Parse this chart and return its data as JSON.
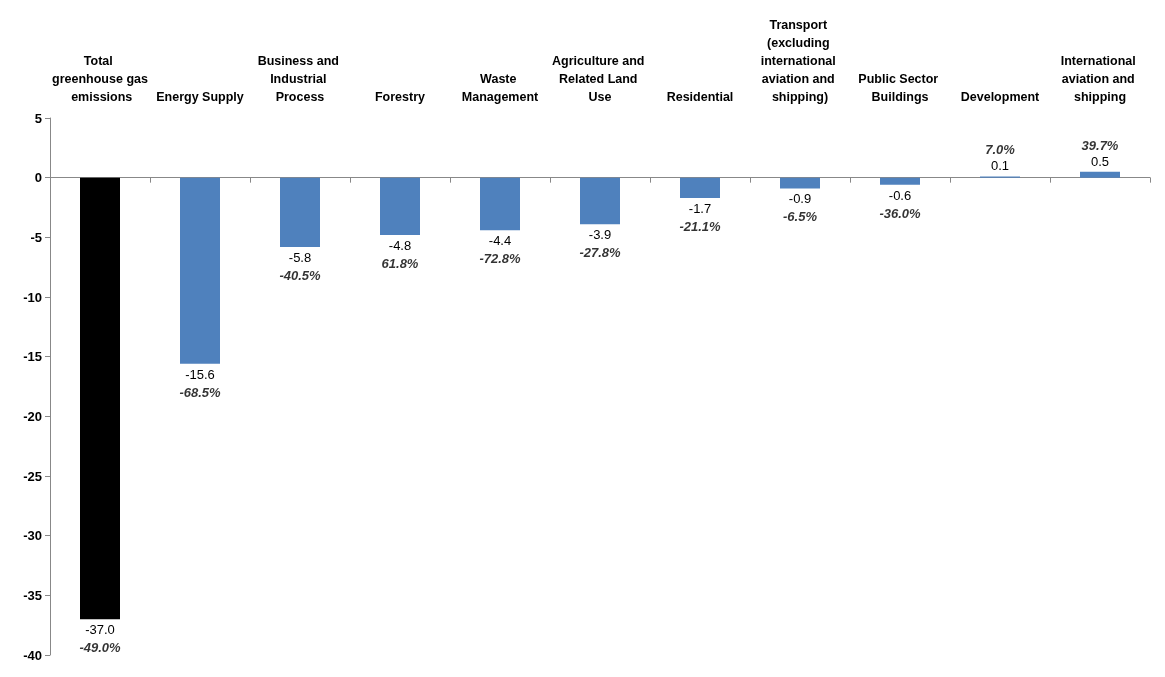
{
  "chart_data": {
    "type": "bar",
    "categories": [
      "Total greenhouse gas emissions",
      "Energy Supply",
      "Business and Industrial Process",
      "Forestry",
      "Waste Management",
      "Agriculture and Related Land Use",
      "Residential",
      "Transport (excluding international aviation and shipping)",
      "Public Sector Buildings",
      "Development",
      "International aviation and shipping"
    ],
    "values": [
      -37.0,
      -15.6,
      -5.8,
      -4.8,
      -4.4,
      -3.9,
      -1.7,
      -0.9,
      -0.6,
      0.1,
      0.5
    ],
    "value_labels": [
      "-37.0",
      "-15.6",
      "-5.8",
      "-4.8",
      "-4.4",
      "-3.9",
      "-1.7",
      "-0.9",
      "-0.6",
      "0.1",
      "0.5"
    ],
    "colors": [
      "#000000",
      "#4f81bd",
      "#4f81bd",
      "#4f81bd",
      "#4f81bd",
      "#4f81bd",
      "#4f81bd",
      "#4f81bd",
      "#4f81bd",
      "#4f81bd",
      "#4f81bd"
    ],
    "annotations": [
      {
        "text": "-49.0%",
        "x": "Total greenhouse gas emissions",
        "y": -37.0
      },
      {
        "text": "-68.5%",
        "x": "Energy Supply",
        "y": -15.6
      },
      {
        "text": "-40.5%",
        "x": "Business and Industrial Process",
        "y": -5.8
      },
      {
        "text": "61.8%",
        "x": "Forestry",
        "y": -4.8
      },
      {
        "text": "-72.8%",
        "x": "Waste Management",
        "y": -4.4
      },
      {
        "text": "-27.8%",
        "x": "Agriculture and Related Land Use",
        "y": -3.9
      },
      {
        "text": "-21.1%",
        "x": "Residential",
        "y": -1.7
      },
      {
        "text": "-6.5%",
        "x": "Transport (excluding international aviation and shipping)",
        "y": -0.9
      },
      {
        "text": "-36.0%",
        "x": "Public Sector Buildings",
        "y": -0.6
      },
      {
        "text": "7.0%",
        "x": "Development",
        "y": 0.1
      },
      {
        "text": "39.7%",
        "x": "International aviation and shipping",
        "y": 0.5
      }
    ],
    "ylim": [
      -40,
      5
    ],
    "yticks": [
      -40,
      -35,
      -30,
      -25,
      -20,
      -15,
      -10,
      -5,
      0,
      5
    ]
  }
}
